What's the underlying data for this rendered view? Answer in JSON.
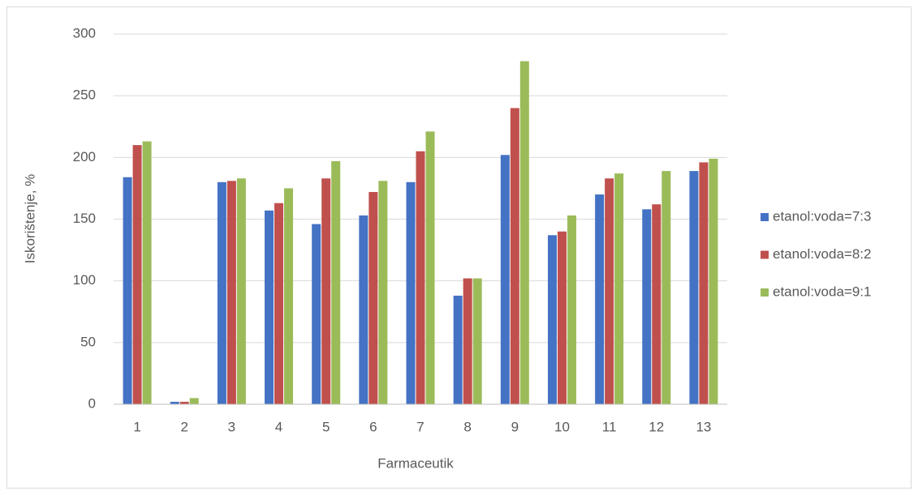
{
  "chart_data": {
    "type": "bar",
    "y_label": "Iskorištenje, %",
    "x_label": "Farmaceutik",
    "categories": [
      "1",
      "2",
      "3",
      "4",
      "5",
      "6",
      "7",
      "8",
      "9",
      "10",
      "11",
      "12",
      "13"
    ],
    "series": [
      {
        "name": "etanol:voda=7:3",
        "color": "#4472c4",
        "values": [
          184,
          2,
          180,
          157,
          146,
          153,
          180,
          88,
          202,
          137,
          170,
          158,
          189
        ]
      },
      {
        "name": "etanol:voda=8:2",
        "color": "#c0504d",
        "values": [
          210,
          2,
          181,
          163,
          183,
          172,
          205,
          102,
          240,
          140,
          183,
          162,
          196
        ]
      },
      {
        "name": "etanol:voda=9:1",
        "color": "#9bbb59",
        "values": [
          213,
          5,
          183,
          175,
          197,
          181,
          221,
          102,
          278,
          153,
          187,
          189,
          199
        ]
      }
    ],
    "ylim": [
      0,
      300
    ],
    "yticks": [
      0,
      50,
      100,
      150,
      200,
      250,
      300
    ],
    "grid": true,
    "legend": "right"
  }
}
